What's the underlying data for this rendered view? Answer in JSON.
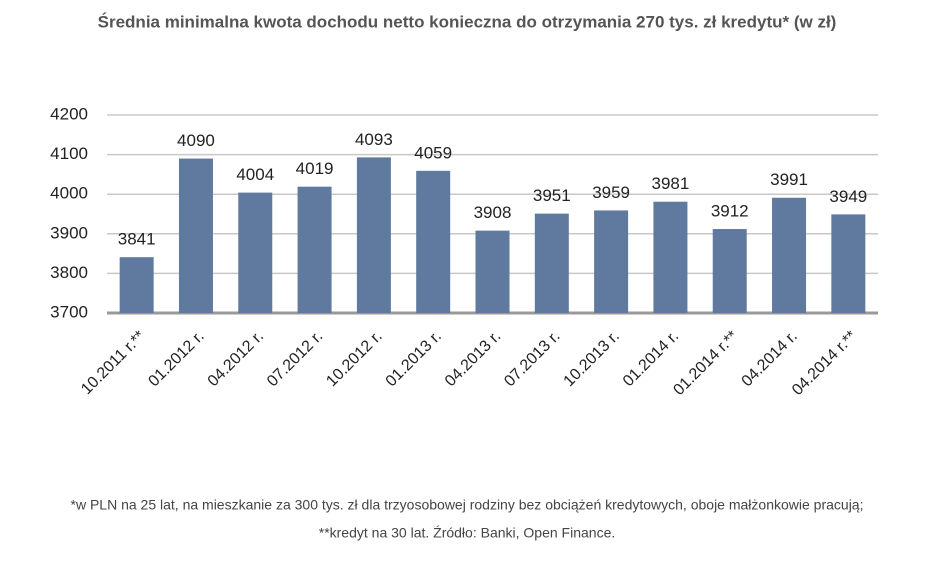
{
  "chart_data": {
    "type": "bar",
    "title": "Średnia minimalna kwota dochodu netto konieczna do otrzymania 270 tys. zł kredytu* (w zł)",
    "categories": [
      "10.2011 r.**",
      "01.2012 r.",
      "04.2012 r.",
      "07.2012 r.",
      "10.2012 r.",
      "01.2013 r.",
      "04.2013 r.",
      "07.2013 r.",
      "10.2013 r.",
      "01.2014 r.",
      "01.2014 r.**",
      "04.2014 r.",
      "04.2014 r.**"
    ],
    "values": [
      3841,
      4090,
      4004,
      4019,
      4093,
      4059,
      3908,
      3951,
      3959,
      3981,
      3912,
      3991,
      3949
    ],
    "color": "#5f7a9e",
    "ylim": [
      3700,
      4200
    ],
    "yticks": [
      3700,
      3800,
      3900,
      4000,
      4100,
      4200
    ],
    "grid": true,
    "notes": [
      "*w PLN na 25 lat, na mieszkanie za 300 tys. zł dla trzyosobowej rodziny bez obciążeń kredytowych, oboje małżonkowie pracują;",
      "**kredyt na 30 lat. Źródło: Banki, Open Finance."
    ]
  }
}
